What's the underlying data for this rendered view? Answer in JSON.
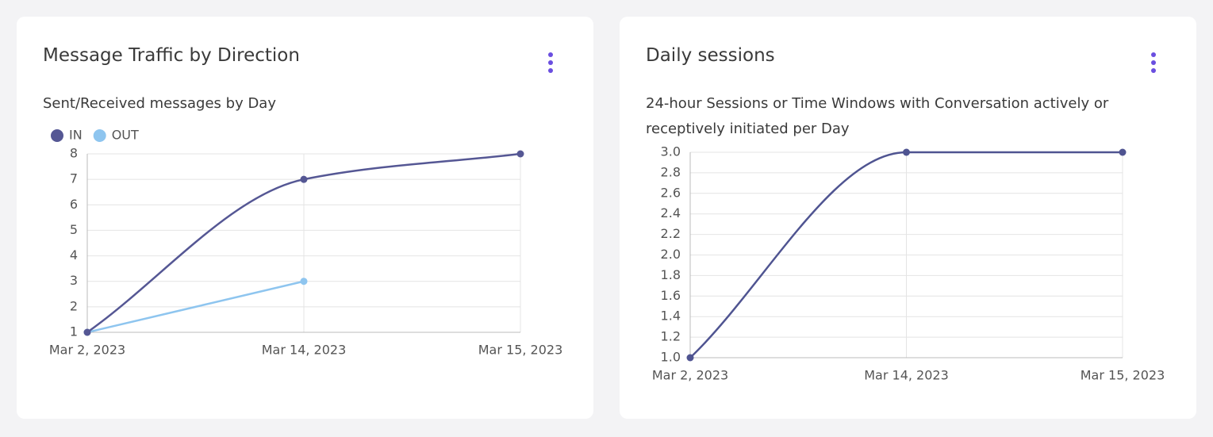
{
  "chart_data": [
    {
      "type": "line",
      "title": "Message Traffic by Direction",
      "subtitle": "Sent/Received messages by Day",
      "categories": [
        "Mar 2, 2023",
        "Mar 14, 2023",
        "Mar 15, 2023"
      ],
      "series": [
        {
          "name": "IN",
          "color": "#555794",
          "values": [
            1,
            7,
            8
          ]
        },
        {
          "name": "OUT",
          "color": "#8ec5ef",
          "values": [
            1,
            3,
            null
          ]
        }
      ],
      "ylim": [
        1,
        8
      ],
      "yticks": [
        1,
        2,
        3,
        4,
        5,
        6,
        7,
        8
      ],
      "grid": true,
      "legend": "top-left"
    },
    {
      "type": "line",
      "title": "Daily sessions",
      "subtitle": "24-hour Sessions or Time Windows with Conversation actively or receptively initiated per Day",
      "categories": [
        "Mar 2, 2023",
        "Mar 14, 2023",
        "Mar 15, 2023"
      ],
      "values": [
        1,
        3,
        3
      ],
      "color": "#4f5491",
      "ylim": [
        1,
        3
      ],
      "yticks": [
        {
          "value": 1,
          "label": "1.0"
        },
        1.2,
        1.4,
        1.6,
        1.8,
        {
          "value": 2,
          "label": "2.0"
        },
        2.2,
        2.4,
        2.6,
        2.8,
        {
          "value": 3,
          "label": "3.0"
        }
      ],
      "grid": true
    }
  ]
}
